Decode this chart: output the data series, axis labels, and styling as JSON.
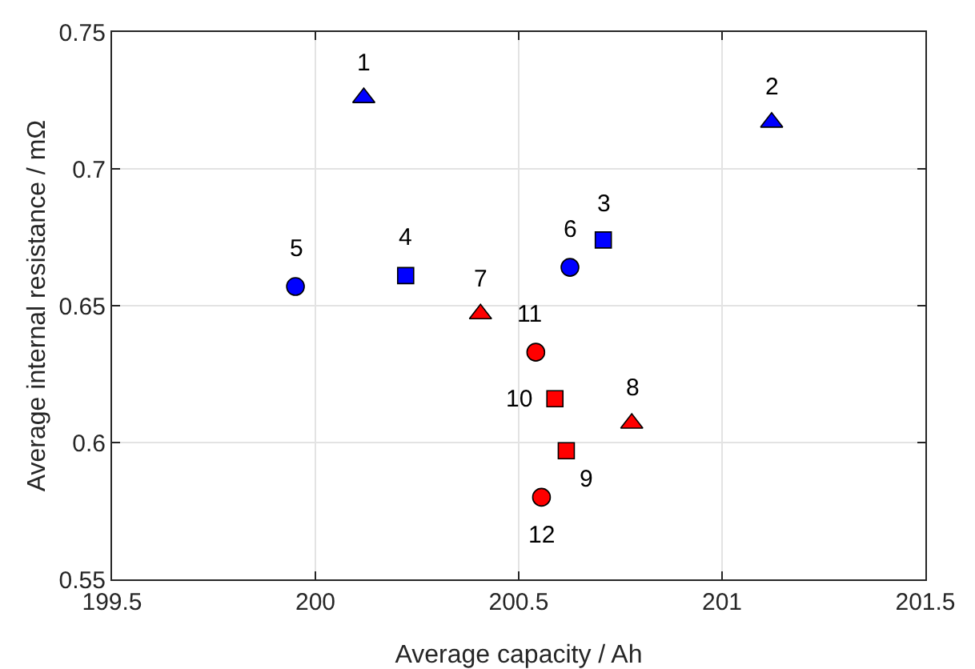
{
  "chart_data": {
    "type": "scatter",
    "xlabel": "Average capacity / Ah",
    "ylabel": "Average internal resistance / mΩ",
    "xlim": [
      199.5,
      201.5
    ],
    "xticks": [
      199.5,
      200,
      200.5,
      201,
      201.5
    ],
    "ylim": [
      0.55,
      0.75
    ],
    "yticks": [
      0.55,
      0.6,
      0.65,
      0.7,
      0.75
    ],
    "grid": true,
    "series": [
      {
        "color": "#0000ff",
        "marker": "triangle",
        "x": [
          200.119,
          201.122
        ],
        "values": [
          0.726,
          0.717
        ]
      },
      {
        "color": "#0000ff",
        "marker": "square",
        "x": [
          200.708,
          200.222
        ],
        "values": [
          0.674,
          0.661
        ]
      },
      {
        "color": "#0000ff",
        "marker": "circle",
        "x": [
          199.951,
          200.626
        ],
        "values": [
          0.657,
          0.664
        ]
      },
      {
        "color": "#ff0000",
        "marker": "triangle",
        "x": [
          200.406,
          200.778
        ],
        "values": [
          0.647,
          0.607
        ]
      },
      {
        "color": "#ff0000",
        "marker": "square",
        "x": [
          200.617,
          200.589
        ],
        "values": [
          0.597,
          0.616
        ]
      },
      {
        "color": "#ff0000",
        "marker": "circle",
        "x": [
          200.542,
          200.556
        ],
        "values": [
          0.633,
          0.58
        ]
      }
    ],
    "annotations": [
      {
        "text": "1",
        "x": 200.119,
        "y": 0.726
      },
      {
        "text": "2",
        "x": 201.122,
        "y": 0.717
      },
      {
        "text": "3",
        "x": 200.708,
        "y": 0.674
      },
      {
        "text": "4",
        "x": 200.222,
        "y": 0.661
      },
      {
        "text": "5",
        "x": 199.951,
        "y": 0.657
      },
      {
        "text": "6",
        "x": 200.626,
        "y": 0.664
      },
      {
        "text": "7",
        "x": 200.406,
        "y": 0.647
      },
      {
        "text": "8",
        "x": 200.778,
        "y": 0.607
      },
      {
        "text": "9",
        "x": 200.617,
        "y": 0.597
      },
      {
        "text": "10",
        "x": 200.589,
        "y": 0.616
      },
      {
        "text": "11",
        "x": 200.542,
        "y": 0.633
      },
      {
        "text": "12",
        "x": 200.556,
        "y": 0.58
      }
    ]
  }
}
